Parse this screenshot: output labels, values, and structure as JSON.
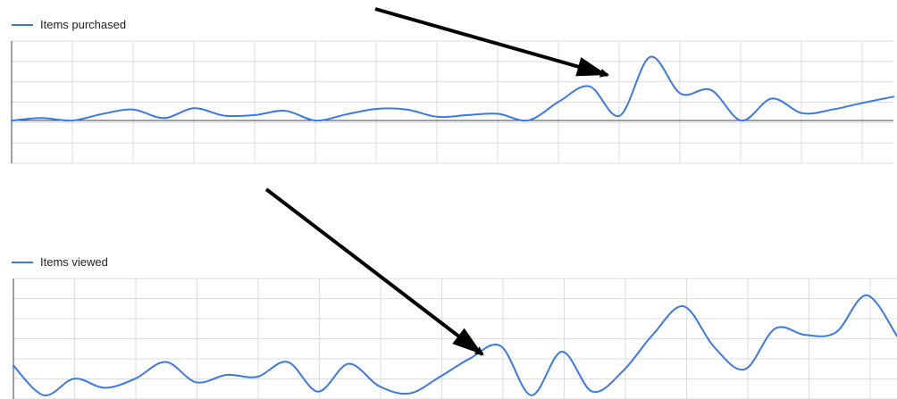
{
  "colors": {
    "line": "#3b78e7",
    "grid": "#dadce0",
    "axis": "#3c4043",
    "arrow": "#000000"
  },
  "chart_data": [
    {
      "type": "line",
      "legend_position": "top-left",
      "grid": true,
      "series": [
        {
          "name": "Items purchased",
          "x": [
            0,
            0.5,
            1,
            1.5,
            2,
            2.5,
            3,
            3.5,
            4,
            4.5,
            5,
            5.5,
            6,
            6.5,
            7,
            7.5,
            8,
            8.5,
            9,
            9.5,
            10,
            10.5,
            11,
            11.5,
            12,
            12.5,
            13,
            13.5,
            14,
            14.5
          ],
          "values": [
            0,
            0.2,
            0,
            0.55,
            0.9,
            0.2,
            1.0,
            0.4,
            0.45,
            0.8,
            0,
            0.5,
            0.95,
            0.9,
            0.3,
            0.45,
            0.55,
            0.02,
            1.55,
            2.8,
            0.4,
            5.2,
            2.2,
            2.5,
            0,
            1.8,
            0.6,
            0.9,
            1.45,
            1.95
          ]
        }
      ],
      "ylim": [
        -3.5,
        6.5
      ]
    },
    {
      "type": "line",
      "legend_position": "top-left",
      "grid": true,
      "series": [
        {
          "name": "Items viewed",
          "x": [
            0,
            0.5,
            1,
            1.5,
            2,
            2.5,
            3,
            3.5,
            4,
            4.5,
            5,
            5.5,
            6,
            6.5,
            7,
            7.5,
            8,
            8.5,
            9,
            9.5,
            10,
            10.5,
            11,
            11.5,
            12,
            12.5,
            13,
            13.5,
            14,
            14.5
          ],
          "values": [
            1.8,
            0.2,
            1.1,
            0.6,
            1.1,
            2.0,
            0.9,
            1.3,
            1.2,
            2.0,
            0.4,
            1.9,
            0.7,
            0.3,
            1.2,
            2.2,
            2.85,
            0.2,
            2.55,
            0.4,
            1.5,
            3.5,
            5.0,
            2.8,
            1.6,
            3.8,
            3.45,
            3.6,
            5.6,
            3.4
          ]
        }
      ],
      "ylim": [
        0,
        6.5
      ]
    }
  ]
}
